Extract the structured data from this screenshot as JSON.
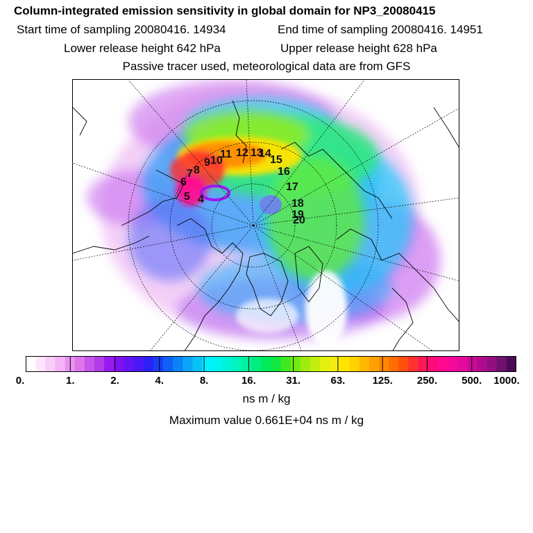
{
  "header": {
    "title": "Column-integrated emission sensitivity in global domain for NP3_20080415",
    "start_time": "Start time of sampling 20080416. 14934",
    "end_time": "End time of sampling 20080416. 14951",
    "lower_height": "Lower release height  642 hPa",
    "upper_height": "Upper release height  628 hPa",
    "note": "Passive tracer used, meteorological data are from GFS"
  },
  "map": {
    "projection": "polar stereographic (north)",
    "trajectory_points": [
      "4",
      "5",
      "6",
      "7",
      "8",
      "9",
      "10",
      "11",
      "12",
      "13",
      "14",
      "15",
      "16",
      "17",
      "18",
      "19",
      "20"
    ]
  },
  "colorbar": {
    "tick_labels": [
      "0.",
      "1.",
      "2.",
      "4.",
      "8.",
      "16.",
      "31.",
      "63.",
      "125.",
      "250.",
      "500.",
      "1000."
    ],
    "colors": [
      "#ffffff",
      "#fde6fd",
      "#f8cdf8",
      "#f2b4f4",
      "#e993ef",
      "#dc74ea",
      "#c655ea",
      "#b23ce8",
      "#9a18f0",
      "#7f12f2",
      "#6414f4",
      "#4a18f5",
      "#2d20f7",
      "#1a3ef8",
      "#1060f8",
      "#0a82f8",
      "#0aa4f8",
      "#0ac2f9",
      "#00f0ff",
      "#00f4f0",
      "#00f4d8",
      "#00f4bc",
      "#00f2a0",
      "#00ee80",
      "#00ea5c",
      "#10e840",
      "#40e820",
      "#70ea10",
      "#a0ec10",
      "#c4ee10",
      "#e2f010",
      "#f4ec10",
      "#ffe400",
      "#ffd200",
      "#ffba00",
      "#ffa000",
      "#ff8800",
      "#ff6e00",
      "#ff5010",
      "#ff3030",
      "#ff1858",
      "#ff0a78",
      "#ff0a90",
      "#f40a98",
      "#e40a9c",
      "#cc0a98",
      "#b00a90",
      "#901080",
      "#701070",
      "#4c0a54"
    ],
    "units": "ns m / kg",
    "max_value": "Maximum value  0.661E+04 ns m / kg"
  }
}
